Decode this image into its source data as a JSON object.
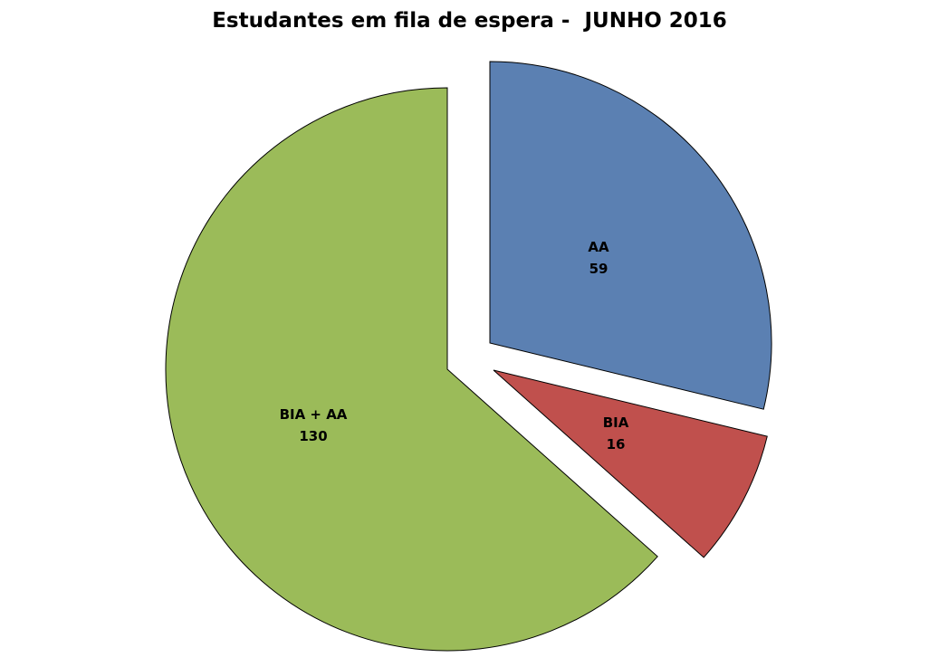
{
  "chart_data": {
    "type": "pie",
    "title": "Estudantes em fila de espera -  JUNHO 2016",
    "slices": [
      {
        "label": "AA",
        "value": 59,
        "color": "#5b80b2",
        "exploded": true
      },
      {
        "label": "BIA",
        "value": 16,
        "color": "#c0504d",
        "exploded": true
      },
      {
        "label": "BIA + AA",
        "value": 130,
        "color": "#9bbb59",
        "exploded": false
      }
    ],
    "start_angle": "12 o'clock, clockwise",
    "legend": "none"
  }
}
